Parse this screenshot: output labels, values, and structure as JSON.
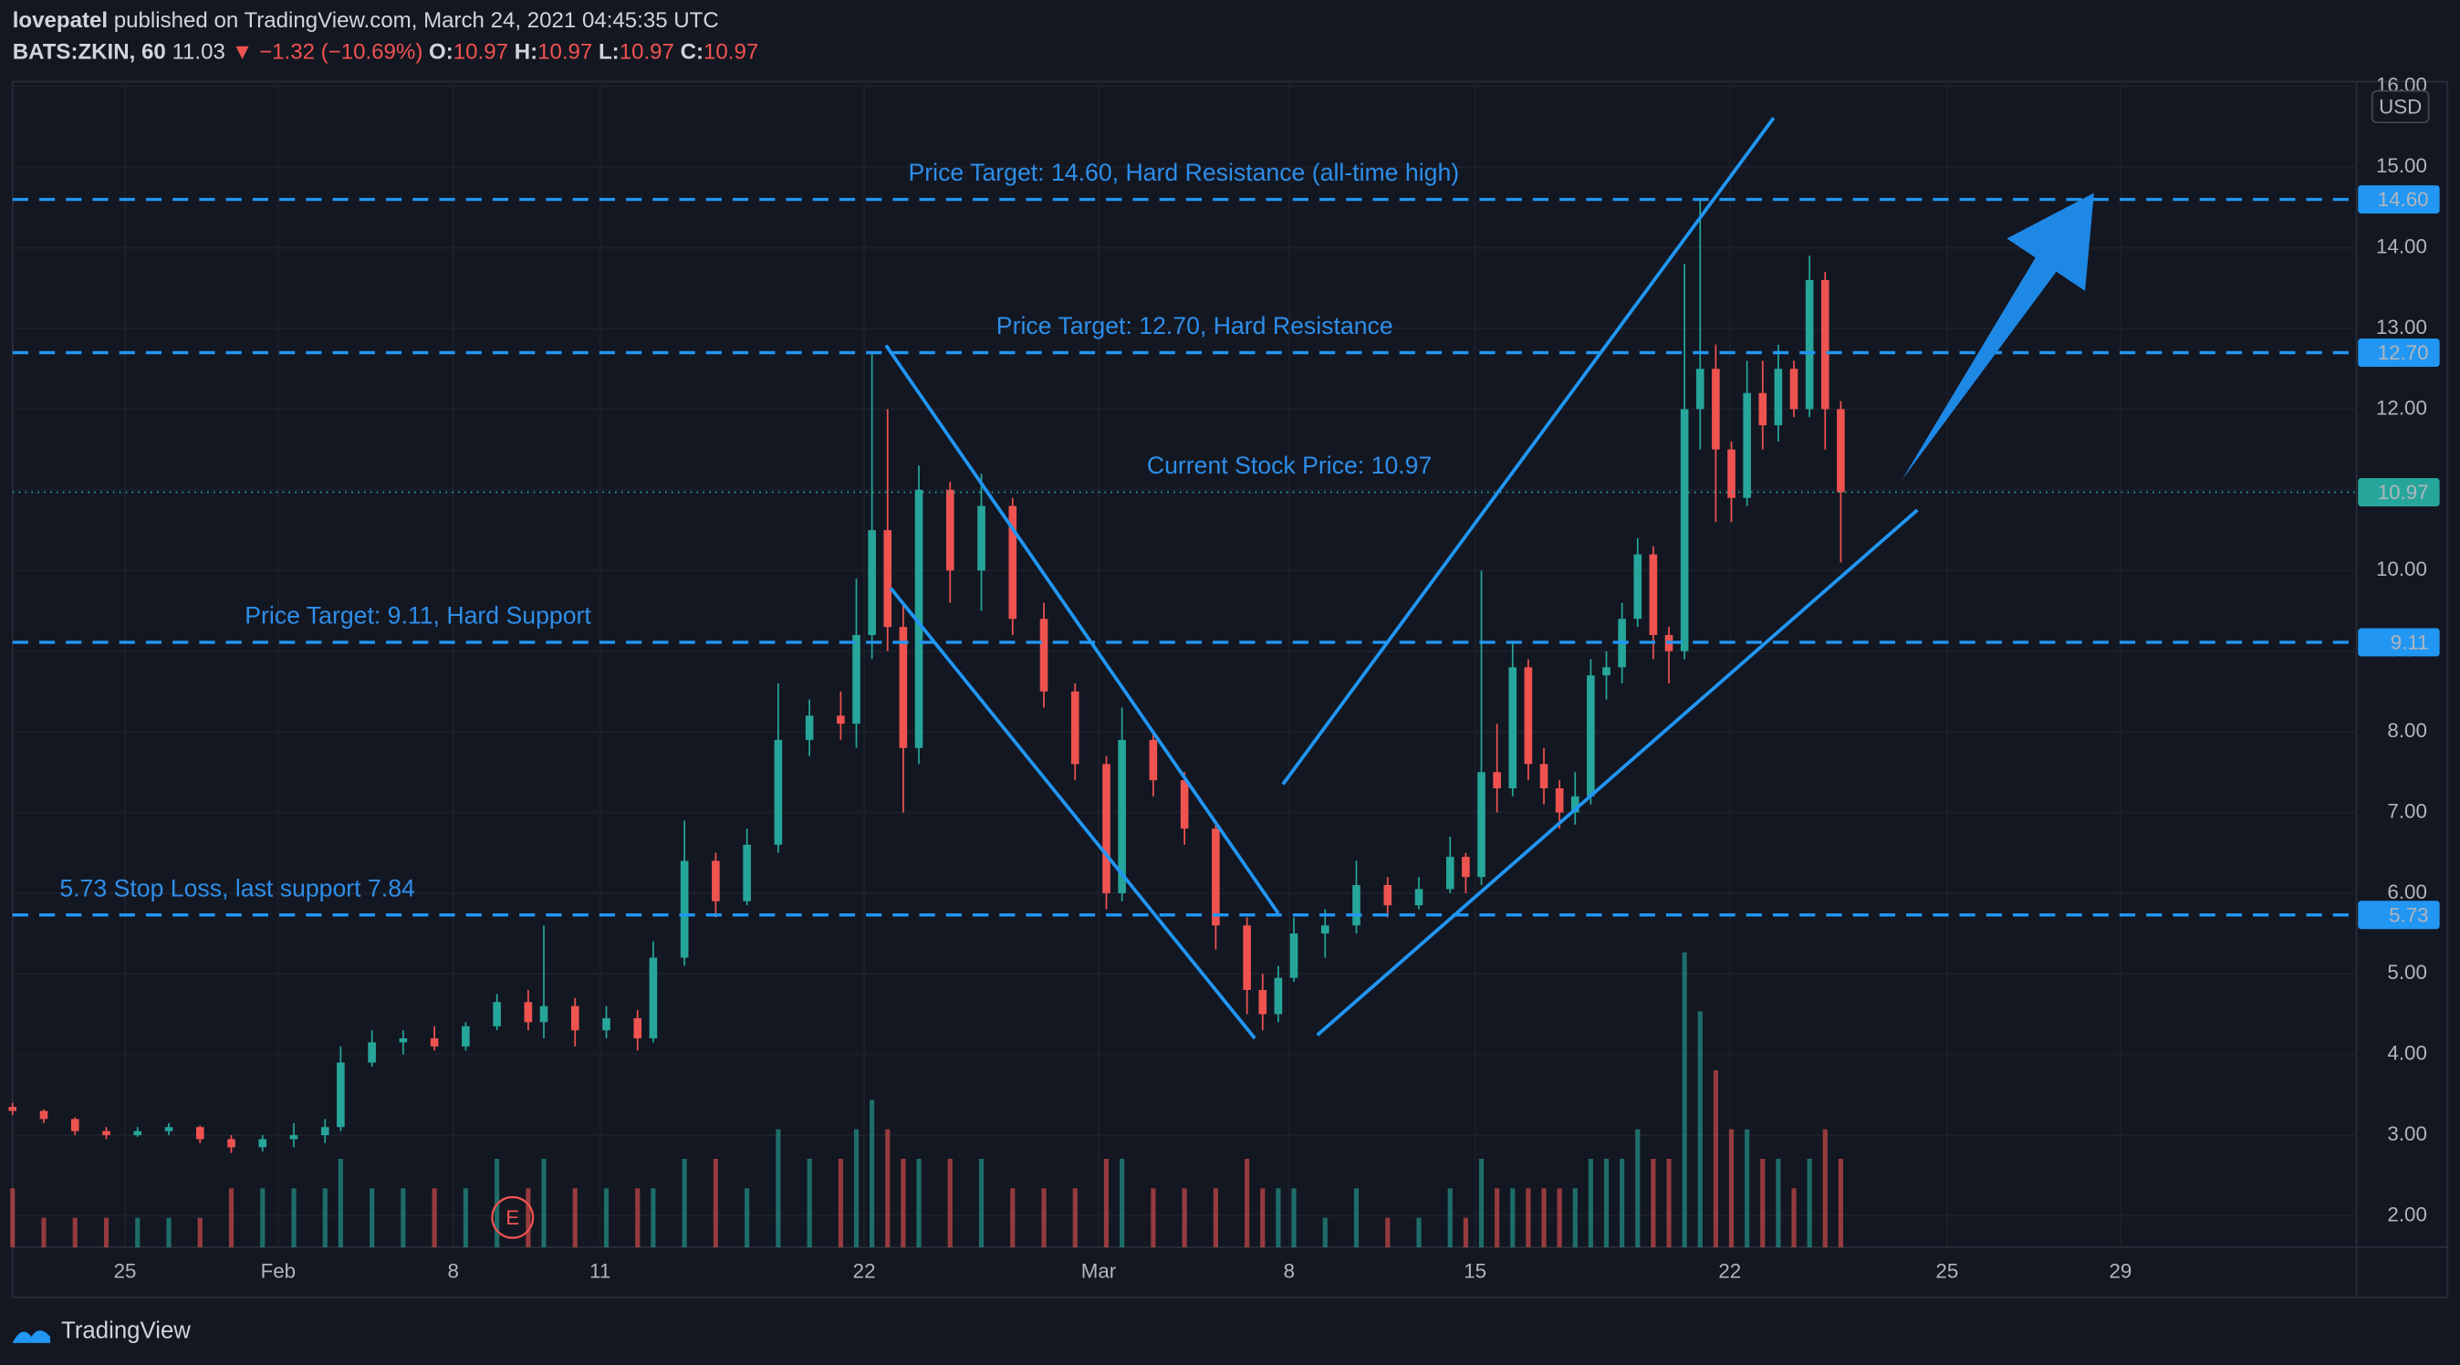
{
  "header": {
    "author": "lovepatel",
    "published": "published on TradingView.com, March 24, 2021 04:45:35 UTC"
  },
  "legend": {
    "symbol": "BATS:ZKIN, 60",
    "last": "11.03",
    "arrow": "▼",
    "change": "−1.32 (−10.69%)",
    "o_label": "O:",
    "o": "10.97",
    "h_label": "H:",
    "h": "10.97",
    "l_label": "L:",
    "l": "10.97",
    "c_label": "C:",
    "c": "10.97"
  },
  "footer": {
    "brand": "TradingView"
  },
  "chart_data": {
    "type": "candlestick",
    "currency": "USD",
    "up_color": "#26a69a",
    "down_color": "#ef5350",
    "line_color": "#2196f3",
    "xlim": [
      0,
      150
    ],
    "ylim": [
      1.61,
      16.06
    ],
    "xticks": [
      {
        "value": 7.2,
        "label": "25"
      },
      {
        "value": 17,
        "label": "Feb"
      },
      {
        "value": 28.2,
        "label": "8"
      },
      {
        "value": 37.6,
        "label": "11"
      },
      {
        "value": 54.5,
        "label": "22"
      },
      {
        "value": 69.5,
        "label": "Mar"
      },
      {
        "value": 81.7,
        "label": "8"
      },
      {
        "value": 93.6,
        "label": "15"
      },
      {
        "value": 109.9,
        "label": "22"
      },
      {
        "value": 123.8,
        "label": "25"
      },
      {
        "value": 134.9,
        "label": "29"
      }
    ],
    "yticks": [
      {
        "value": 2,
        "label": "2.00"
      },
      {
        "value": 3,
        "label": "3.00"
      },
      {
        "value": 4,
        "label": "4.00"
      },
      {
        "value": 5,
        "label": "5.00"
      },
      {
        "value": 6,
        "label": "6.00"
      },
      {
        "value": 7,
        "label": "7.00"
      },
      {
        "value": 8,
        "label": "8.00"
      },
      {
        "value": 9,
        "label": "9.00"
      },
      {
        "value": 10,
        "label": "10.00"
      },
      {
        "value": 11,
        "label": "11.00"
      },
      {
        "value": 12,
        "label": "12.00"
      },
      {
        "value": 13,
        "label": "13.00"
      },
      {
        "value": 14,
        "label": "14.00"
      },
      {
        "value": 15,
        "label": "15.00"
      },
      {
        "value": 16,
        "label": "16.00"
      }
    ],
    "candles": [
      {
        "x": 0,
        "o": 3.35,
        "h": 3.4,
        "l": 3.25,
        "c": 3.3,
        "v": 2
      },
      {
        "x": 2,
        "o": 3.3,
        "h": 3.32,
        "l": 3.15,
        "c": 3.2,
        "v": 1
      },
      {
        "x": 4,
        "o": 3.2,
        "h": 3.22,
        "l": 3.0,
        "c": 3.05,
        "v": 1
      },
      {
        "x": 6,
        "o": 3.05,
        "h": 3.1,
        "l": 2.95,
        "c": 3.0,
        "v": 1
      },
      {
        "x": 8,
        "o": 3.0,
        "h": 3.1,
        "l": 2.98,
        "c": 3.05,
        "v": 1
      },
      {
        "x": 10,
        "o": 3.05,
        "h": 3.15,
        "l": 3.0,
        "c": 3.1,
        "v": 1
      },
      {
        "x": 12,
        "o": 3.1,
        "h": 3.12,
        "l": 2.9,
        "c": 2.95,
        "v": 1
      },
      {
        "x": 14,
        "o": 2.95,
        "h": 3.0,
        "l": 2.78,
        "c": 2.85,
        "v": 2
      },
      {
        "x": 16,
        "o": 2.85,
        "h": 3.0,
        "l": 2.8,
        "c": 2.95,
        "v": 2
      },
      {
        "x": 18,
        "o": 2.95,
        "h": 3.15,
        "l": 2.85,
        "c": 3.0,
        "v": 2
      },
      {
        "x": 20,
        "o": 3.0,
        "h": 3.2,
        "l": 2.9,
        "c": 3.1,
        "v": 2
      },
      {
        "x": 21,
        "o": 3.1,
        "h": 4.1,
        "l": 3.05,
        "c": 3.9,
        "v": 3
      },
      {
        "x": 23,
        "o": 3.9,
        "h": 4.3,
        "l": 3.85,
        "c": 4.15,
        "v": 2
      },
      {
        "x": 25,
        "o": 4.15,
        "h": 4.3,
        "l": 4.0,
        "c": 4.2,
        "v": 2
      },
      {
        "x": 27,
        "o": 4.2,
        "h": 4.35,
        "l": 4.05,
        "c": 4.1,
        "v": 2
      },
      {
        "x": 29,
        "o": 4.1,
        "h": 4.4,
        "l": 4.05,
        "c": 4.35,
        "v": 2
      },
      {
        "x": 31,
        "o": 4.35,
        "h": 4.75,
        "l": 4.3,
        "c": 4.65,
        "v": 3
      },
      {
        "x": 33,
        "o": 4.65,
        "h": 4.8,
        "l": 4.3,
        "c": 4.4,
        "v": 2
      },
      {
        "x": 34,
        "o": 4.4,
        "h": 5.6,
        "l": 4.2,
        "c": 4.6,
        "v": 3
      },
      {
        "x": 36,
        "o": 4.6,
        "h": 4.7,
        "l": 4.1,
        "c": 4.3,
        "v": 2
      },
      {
        "x": 38,
        "o": 4.3,
        "h": 4.6,
        "l": 4.2,
        "c": 4.45,
        "v": 2
      },
      {
        "x": 40,
        "o": 4.45,
        "h": 4.55,
        "l": 4.05,
        "c": 4.2,
        "v": 2
      },
      {
        "x": 41,
        "o": 4.2,
        "h": 5.4,
        "l": 4.15,
        "c": 5.2,
        "v": 2
      },
      {
        "x": 43,
        "o": 5.2,
        "h": 6.9,
        "l": 5.1,
        "c": 6.4,
        "v": 3
      },
      {
        "x": 45,
        "o": 6.4,
        "h": 6.5,
        "l": 5.7,
        "c": 5.9,
        "v": 3
      },
      {
        "x": 47,
        "o": 5.9,
        "h": 6.8,
        "l": 5.85,
        "c": 6.6,
        "v": 2
      },
      {
        "x": 49,
        "o": 6.6,
        "h": 8.6,
        "l": 6.5,
        "c": 7.9,
        "v": 4
      },
      {
        "x": 51,
        "o": 7.9,
        "h": 8.4,
        "l": 7.7,
        "c": 8.2,
        "v": 3
      },
      {
        "x": 53,
        "o": 8.2,
        "h": 8.5,
        "l": 7.9,
        "c": 8.1,
        "v": 3
      },
      {
        "x": 54,
        "o": 8.1,
        "h": 9.9,
        "l": 7.8,
        "c": 9.2,
        "v": 4
      },
      {
        "x": 55,
        "o": 9.2,
        "h": 12.7,
        "l": 8.9,
        "c": 10.5,
        "v": 5
      },
      {
        "x": 56,
        "o": 10.5,
        "h": 12.0,
        "l": 9.0,
        "c": 9.3,
        "v": 4
      },
      {
        "x": 57,
        "o": 9.3,
        "h": 9.6,
        "l": 7.0,
        "c": 7.8,
        "v": 3
      },
      {
        "x": 58,
        "o": 7.8,
        "h": 11.3,
        "l": 7.6,
        "c": 11.0,
        "v": 3
      },
      {
        "x": 60,
        "o": 11.0,
        "h": 11.1,
        "l": 9.6,
        "c": 10.0,
        "v": 3
      },
      {
        "x": 62,
        "o": 10.0,
        "h": 11.2,
        "l": 9.5,
        "c": 10.8,
        "v": 3
      },
      {
        "x": 64,
        "o": 10.8,
        "h": 10.9,
        "l": 9.2,
        "c": 9.4,
        "v": 2
      },
      {
        "x": 66,
        "o": 9.4,
        "h": 9.6,
        "l": 8.3,
        "c": 8.5,
        "v": 2
      },
      {
        "x": 68,
        "o": 8.5,
        "h": 8.6,
        "l": 7.4,
        "c": 7.6,
        "v": 2
      },
      {
        "x": 70,
        "o": 7.6,
        "h": 7.7,
        "l": 5.8,
        "c": 6.0,
        "v": 3
      },
      {
        "x": 71,
        "o": 6.0,
        "h": 8.3,
        "l": 5.9,
        "c": 7.9,
        "v": 3
      },
      {
        "x": 73,
        "o": 7.9,
        "h": 8.0,
        "l": 7.2,
        "c": 7.4,
        "v": 2
      },
      {
        "x": 75,
        "o": 7.4,
        "h": 7.5,
        "l": 6.6,
        "c": 6.8,
        "v": 2
      },
      {
        "x": 77,
        "o": 6.8,
        "h": 6.9,
        "l": 5.3,
        "c": 5.6,
        "v": 2
      },
      {
        "x": 79,
        "o": 5.6,
        "h": 5.7,
        "l": 4.5,
        "c": 4.8,
        "v": 3
      },
      {
        "x": 80,
        "o": 4.8,
        "h": 5.0,
        "l": 4.3,
        "c": 4.5,
        "v": 2
      },
      {
        "x": 81,
        "o": 4.5,
        "h": 5.1,
        "l": 4.4,
        "c": 4.95,
        "v": 2
      },
      {
        "x": 82,
        "o": 4.95,
        "h": 5.7,
        "l": 4.9,
        "c": 5.5,
        "v": 2
      },
      {
        "x": 84,
        "o": 5.5,
        "h": 5.8,
        "l": 5.2,
        "c": 5.6,
        "v": 1
      },
      {
        "x": 86,
        "o": 5.6,
        "h": 6.4,
        "l": 5.5,
        "c": 6.1,
        "v": 2
      },
      {
        "x": 88,
        "o": 6.1,
        "h": 6.2,
        "l": 5.7,
        "c": 5.85,
        "v": 1
      },
      {
        "x": 90,
        "o": 5.85,
        "h": 6.2,
        "l": 5.8,
        "c": 6.05,
        "v": 1
      },
      {
        "x": 92,
        "o": 6.05,
        "h": 6.7,
        "l": 6.0,
        "c": 6.45,
        "v": 2
      },
      {
        "x": 93,
        "o": 6.45,
        "h": 6.5,
        "l": 6.0,
        "c": 6.2,
        "v": 1
      },
      {
        "x": 94,
        "o": 6.2,
        "h": 10.0,
        "l": 6.1,
        "c": 7.5,
        "v": 3
      },
      {
        "x": 95,
        "o": 7.5,
        "h": 8.1,
        "l": 7.0,
        "c": 7.3,
        "v": 2
      },
      {
        "x": 96,
        "o": 7.3,
        "h": 9.1,
        "l": 7.2,
        "c": 8.8,
        "v": 2
      },
      {
        "x": 97,
        "o": 8.8,
        "h": 8.9,
        "l": 7.4,
        "c": 7.6,
        "v": 2
      },
      {
        "x": 98,
        "o": 7.6,
        "h": 7.8,
        "l": 7.1,
        "c": 7.3,
        "v": 2
      },
      {
        "x": 99,
        "o": 7.3,
        "h": 7.4,
        "l": 6.8,
        "c": 7.0,
        "v": 2
      },
      {
        "x": 100,
        "o": 7.0,
        "h": 7.5,
        "l": 6.85,
        "c": 7.2,
        "v": 2
      },
      {
        "x": 101,
        "o": 7.2,
        "h": 8.9,
        "l": 7.1,
        "c": 8.7,
        "v": 3
      },
      {
        "x": 102,
        "o": 8.7,
        "h": 9.0,
        "l": 8.4,
        "c": 8.8,
        "v": 3
      },
      {
        "x": 103,
        "o": 8.8,
        "h": 9.6,
        "l": 8.6,
        "c": 9.4,
        "v": 3
      },
      {
        "x": 104,
        "o": 9.4,
        "h": 10.4,
        "l": 9.3,
        "c": 10.2,
        "v": 4
      },
      {
        "x": 105,
        "o": 10.2,
        "h": 10.3,
        "l": 8.9,
        "c": 9.2,
        "v": 3
      },
      {
        "x": 106,
        "o": 9.2,
        "h": 9.3,
        "l": 8.6,
        "c": 9.0,
        "v": 3
      },
      {
        "x": 107,
        "o": 9.0,
        "h": 13.8,
        "l": 8.9,
        "c": 12.0,
        "v": 10
      },
      {
        "x": 108,
        "o": 12.0,
        "h": 14.6,
        "l": 11.5,
        "c": 12.5,
        "v": 8
      },
      {
        "x": 109,
        "o": 12.5,
        "h": 12.8,
        "l": 10.6,
        "c": 11.5,
        "v": 6
      },
      {
        "x": 110,
        "o": 11.5,
        "h": 11.6,
        "l": 10.6,
        "c": 10.9,
        "v": 4
      },
      {
        "x": 111,
        "o": 10.9,
        "h": 12.6,
        "l": 10.8,
        "c": 12.2,
        "v": 4
      },
      {
        "x": 112,
        "o": 12.2,
        "h": 12.6,
        "l": 11.5,
        "c": 11.8,
        "v": 3
      },
      {
        "x": 113,
        "o": 11.8,
        "h": 12.8,
        "l": 11.6,
        "c": 12.5,
        "v": 3
      },
      {
        "x": 114,
        "o": 12.5,
        "h": 12.6,
        "l": 11.9,
        "c": 12.0,
        "v": 2
      },
      {
        "x": 115,
        "o": 12.0,
        "h": 13.9,
        "l": 11.9,
        "c": 13.6,
        "v": 3
      },
      {
        "x": 116,
        "o": 13.6,
        "h": 13.7,
        "l": 11.5,
        "c": 12.0,
        "v": 4
      },
      {
        "x": 117,
        "o": 12.0,
        "h": 12.1,
        "l": 10.1,
        "c": 10.97,
        "v": 3
      }
    ],
    "levels": [
      {
        "value": 14.6,
        "label": "14.60",
        "text": "Price Target: 14.60, Hard Resistance (all-time high)"
      },
      {
        "value": 12.7,
        "label": "12.70",
        "text": "Price Target: 12.70, Hard Resistance"
      },
      {
        "value": 10.97,
        "label": "10.97",
        "text": "Current Stock Price: 10.97",
        "current": true
      },
      {
        "value": 9.11,
        "label": "9.11",
        "text": "Price Target: 9.11, Hard Support"
      },
      {
        "value": 5.73,
        "label": "5.73",
        "text": "5.73 Stop Loss, last support 7.84"
      }
    ],
    "trendlines": [
      {
        "x": [
          55.9,
          81
        ],
        "y": [
          12.79,
          5.75
        ]
      },
      {
        "x": [
          56.2,
          79.5
        ],
        "y": [
          9.78,
          4.2
        ]
      },
      {
        "x": [
          81.3,
          112.7
        ],
        "y": [
          7.35,
          15.61
        ]
      },
      {
        "x": [
          83.5,
          121.9
        ],
        "y": [
          4.24,
          10.75
        ]
      }
    ],
    "arrow": {
      "x": [
        120.9,
        133.2
      ],
      "y": [
        11.12,
        14.68
      ]
    },
    "earnings_marker": {
      "label": "E",
      "x": 32
    }
  }
}
